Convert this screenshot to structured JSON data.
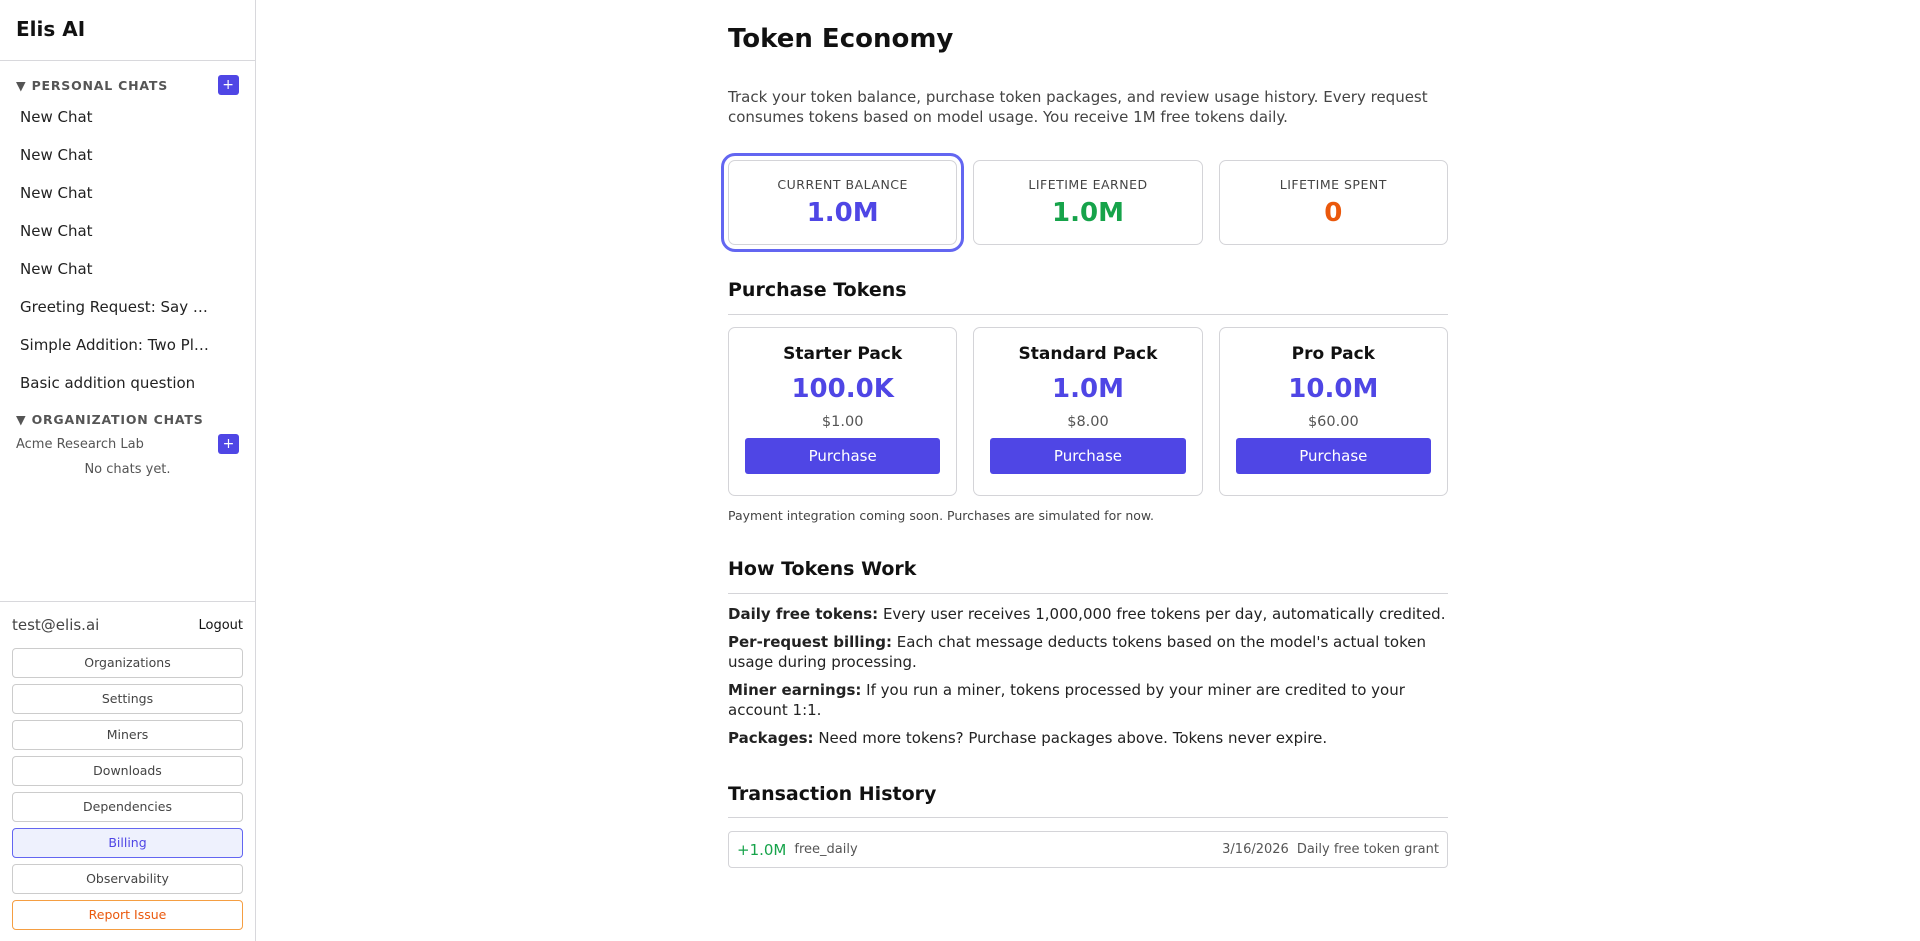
{
  "app": {
    "title": "Elis AI"
  },
  "sidebar": {
    "personal_header": "PERSONAL CHATS",
    "add_label": "+",
    "chats": [
      "New Chat",
      "New Chat",
      "New Chat",
      "New Chat",
      "New Chat",
      "Greeting Request: Say …",
      "Simple Addition: Two Pl…",
      "Basic addition question"
    ],
    "org_header": "ORGANIZATION CHATS",
    "org_name": "Acme Research Lab",
    "org_empty": "No chats yet.",
    "user_email": "test@elis.ai",
    "logout": "Logout",
    "nav": [
      "Organizations",
      "Settings",
      "Miners",
      "Downloads",
      "Dependencies",
      "Billing",
      "Observability",
      "Report Issue"
    ],
    "active": "Billing"
  },
  "page": {
    "title": "Token Economy",
    "description": "Track your token balance, purchase token packages, and review usage history. Every request consumes tokens based on model usage. You receive 1M free tokens daily.",
    "stats": [
      {
        "label": "CURRENT BALANCE",
        "value": "1.0M",
        "color": "#4f46e5"
      },
      {
        "label": "LIFETIME EARNED",
        "value": "1.0M",
        "color": "#16a34a"
      },
      {
        "label": "LIFETIME SPENT",
        "value": "0",
        "color": "#ea580c"
      }
    ],
    "purchase_heading": "Purchase Tokens",
    "packs": [
      {
        "name": "Starter Pack",
        "tokens": "100.0K",
        "price": "$1.00",
        "button": "Purchase"
      },
      {
        "name": "Standard Pack",
        "tokens": "1.0M",
        "price": "$8.00",
        "button": "Purchase"
      },
      {
        "name": "Pro Pack",
        "tokens": "10.0M",
        "price": "$60.00",
        "button": "Purchase"
      }
    ],
    "payment_note": "Payment integration coming soon. Purchases are simulated for now.",
    "how_heading": "How Tokens Work",
    "how": [
      {
        "term": "Daily free tokens:",
        "text": " Every user receives 1,000,000 free tokens per day, automatically credited."
      },
      {
        "term": "Per-request billing:",
        "text": " Each chat message deducts tokens based on the model's actual token usage during processing."
      },
      {
        "term": "Miner earnings:",
        "text": " If you run a miner, tokens processed by your miner are credited to your account 1:1."
      },
      {
        "term": "Packages:",
        "text": " Need more tokens? Purchase packages above. Tokens never expire."
      }
    ],
    "history_heading": "Transaction History",
    "transactions": [
      {
        "amount": "+1.0M",
        "type": "free_daily",
        "date": "3/16/2026",
        "description": "Daily free token grant"
      }
    ]
  }
}
